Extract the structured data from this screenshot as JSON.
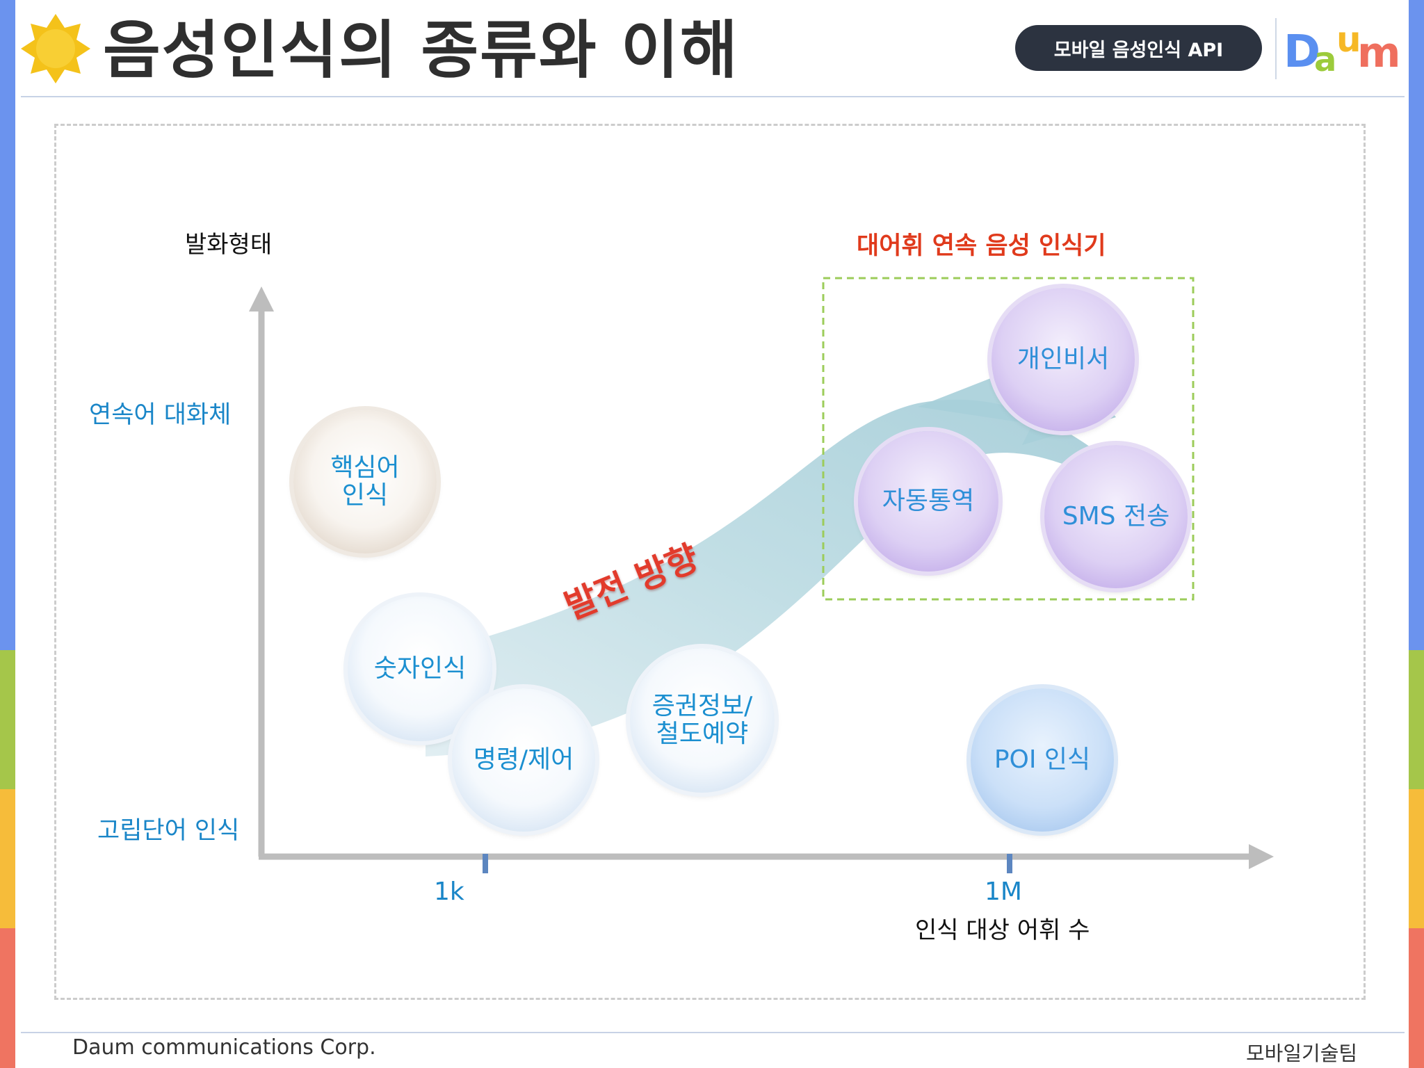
{
  "header": {
    "title": "음성인식의 종류와 이해",
    "api_badge": "모바일 음성인식 API",
    "logo_text": "Daum"
  },
  "diagram": {
    "y_axis_title": "발화형태",
    "x_axis_title": "인식 대상 어휘 수",
    "y_levels": {
      "top": "연속어 대화체",
      "bottom": "고립단어 인식"
    },
    "x_ticks": [
      "1k",
      "1M"
    ],
    "group_label": "대어휘 연속 음성 인식기",
    "direction_label": "발전 방향",
    "bubbles": {
      "keyword": "핵심어\n인식",
      "digit": "숫자인식",
      "command": "명령/제어",
      "stock": "증권정보/\n철도예약",
      "poi": "POI 인식",
      "assistant": "개인비서",
      "translation": "자동통역",
      "sms": "SMS 전송"
    }
  },
  "footer": {
    "company": "Daum communications Corp.",
    "team": "모바일기술팀"
  },
  "colors": {
    "accent_blue": "#1a86c8",
    "accent_red": "#e03a1c",
    "axis_gray": "#bdbdbd",
    "group_box_green": "#9ccc5a",
    "side_stripes": [
      "#6b93ee",
      "#a5c64a",
      "#f6bc3a",
      "#ef7461"
    ]
  },
  "icons": {
    "title_icon": "sun-badge-icon"
  }
}
